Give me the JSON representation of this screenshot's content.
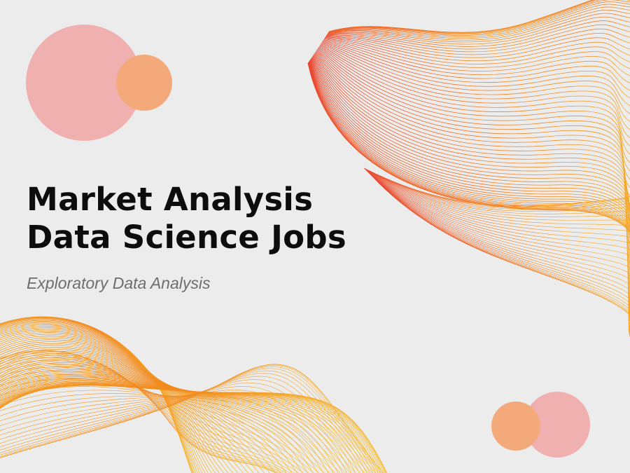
{
  "title": {
    "line1": "Market Analysis",
    "line2": "Data Science Jobs"
  },
  "subtitle": "Exploratory Data Analysis",
  "colors": {
    "background": "#ececec",
    "circle_pink": "#f1b0b0",
    "circle_orange": "#f4a97b",
    "wave_red": "#e8452f",
    "wave_orange": "#f28a1e",
    "wave_yellow": "#f5b92a",
    "title": "#0d0d0d",
    "subtitle": "#6d6d6d"
  }
}
